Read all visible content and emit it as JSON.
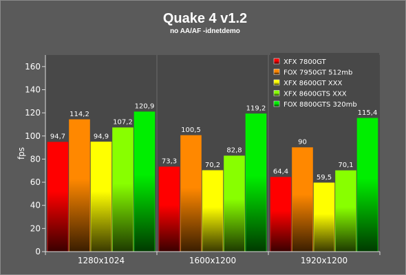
{
  "chart_data": {
    "type": "bar",
    "title": "Quake 4 v1.2",
    "subtitle": "no AA/AF -idnetdemo",
    "xlabel": "",
    "ylabel": "fps",
    "ylim": [
      0,
      170
    ],
    "yticks": [
      0,
      20,
      40,
      60,
      80,
      100,
      120,
      140,
      160
    ],
    "grid": false,
    "legend_position": "top-right",
    "categories": [
      "1280x1024",
      "1600x1200",
      "1920x1200"
    ],
    "series": [
      {
        "name": "XFX 7800GT",
        "values": [
          94.7,
          73.3,
          64.4
        ],
        "labels": [
          "94,7",
          "73,3",
          "64,4"
        ],
        "color": "#ff0000",
        "dark": "#3a0000"
      },
      {
        "name": "FOX 7950GT 512mb",
        "values": [
          114.2,
          100.5,
          90
        ],
        "labels": [
          "114,2",
          "100,5",
          "90"
        ],
        "color": "#ff8800",
        "dark": "#3a1e00"
      },
      {
        "name": "XFX 8600GT XXX",
        "values": [
          94.9,
          70.2,
          59.5
        ],
        "labels": [
          "94,9",
          "70,2",
          "59,5"
        ],
        "color": "#ffff00",
        "dark": "#3a3a00"
      },
      {
        "name": "XFX 8600GTS XXX",
        "values": [
          107.2,
          82.8,
          70.1
        ],
        "labels": [
          "107,2",
          "82,8",
          "70,1"
        ],
        "color": "#88ff00",
        "dark": "#1e3a00"
      },
      {
        "name": "FOX 8800GTS 320mb",
        "values": [
          120.9,
          119.2,
          115.4
        ],
        "labels": [
          "120,9",
          "119,2",
          "115,4"
        ],
        "color": "#00ee00",
        "dark": "#003a00"
      }
    ]
  }
}
